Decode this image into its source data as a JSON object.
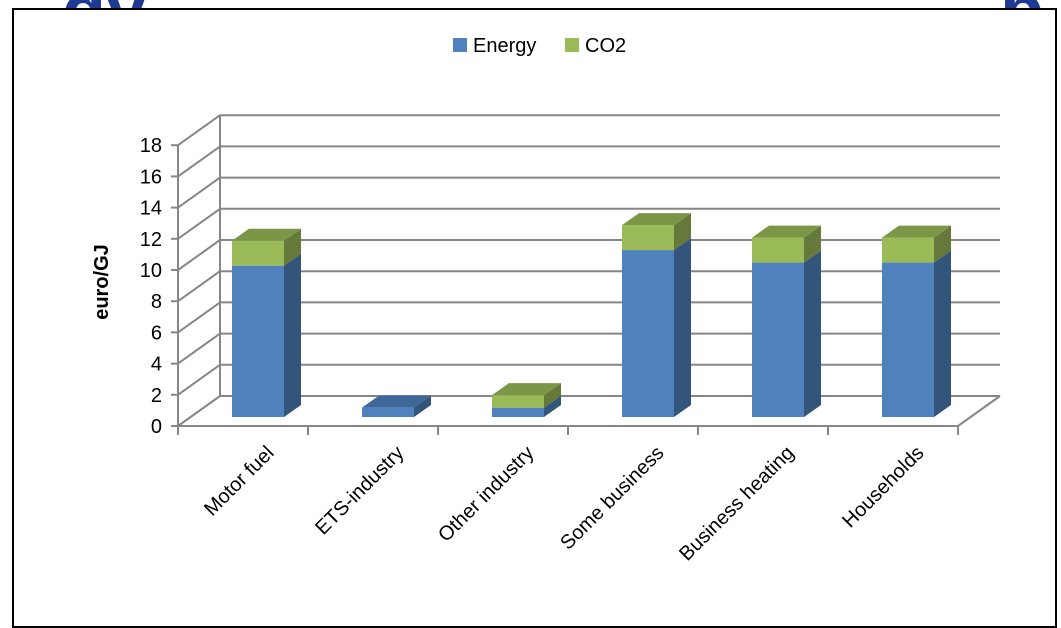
{
  "page": {
    "title_fragment": "gy",
    "title_fragment_right": "p"
  },
  "chart_data": {
    "type": "bar",
    "stacked": true,
    "three_d": true,
    "categories": [
      "Motor fuel",
      "ETS-industry",
      "Other industry",
      "Some business",
      "Business heating",
      "Households"
    ],
    "series": [
      {
        "name": "Energy",
        "color": "#4f81bd",
        "values": [
          9.7,
          0.6,
          0.6,
          10.7,
          9.9,
          9.9
        ]
      },
      {
        "name": "CO2",
        "color": "#9bbb59",
        "values": [
          1.6,
          0.0,
          0.8,
          1.6,
          1.6,
          1.6
        ]
      }
    ],
    "ylabel": "euro/GJ",
    "xlabel": "",
    "ylim": [
      0,
      18
    ],
    "yticks": [
      0,
      2,
      4,
      6,
      8,
      10,
      12,
      14,
      16,
      18
    ],
    "grid": true,
    "legend": "top-center"
  }
}
